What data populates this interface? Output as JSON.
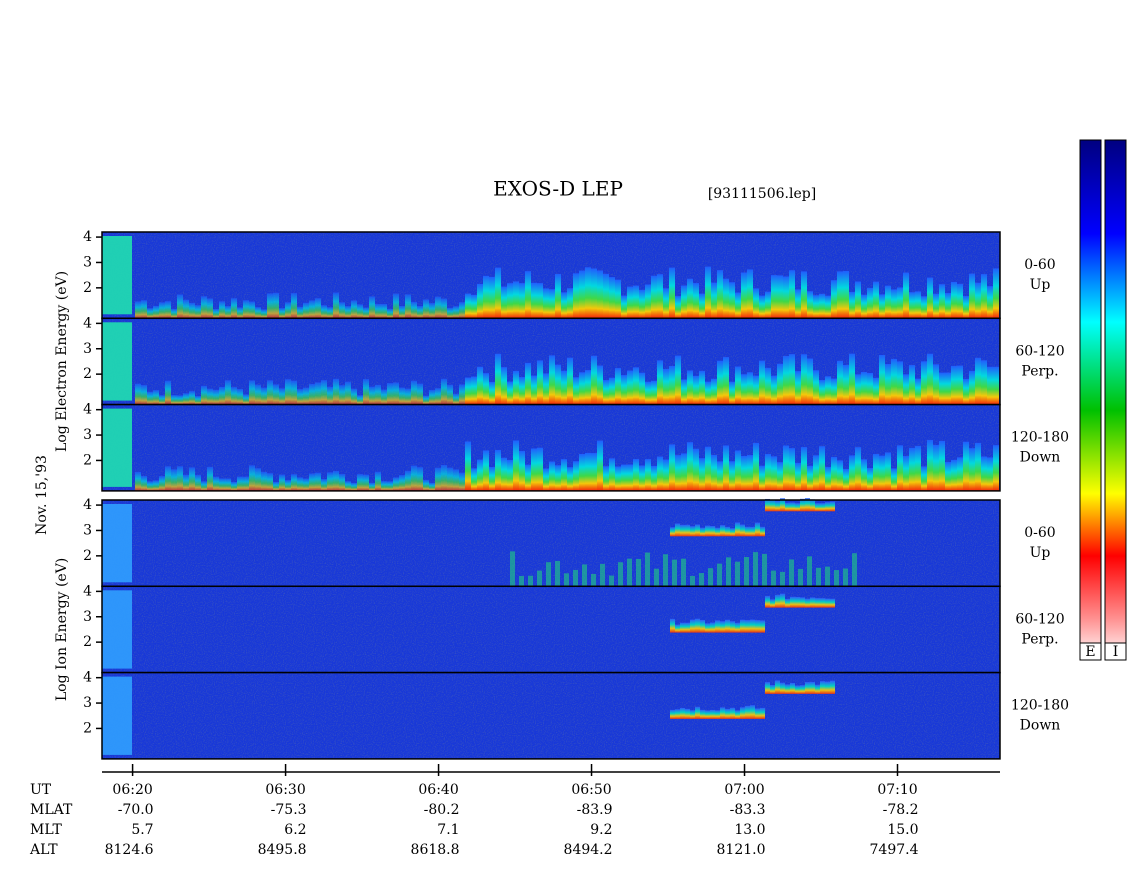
{
  "chart_data": {
    "type": "spectrogram",
    "title": "EXOS-D LEP",
    "subtitle": "[93111506.lep]",
    "date_label": "Nov. 15,'93",
    "ylim": [
      0.8,
      4.2
    ],
    "yticks": [
      2,
      3,
      4
    ],
    "xlim": [
      378,
      436.7
    ],
    "xticks": [
      {
        "value": 380,
        "label": "06:20"
      },
      {
        "value": 390,
        "label": "06:30"
      },
      {
        "value": 400,
        "label": "06:40"
      },
      {
        "value": 410,
        "label": "06:50"
      },
      {
        "value": 420,
        "label": "07:00"
      },
      {
        "value": 430,
        "label": "07:10"
      }
    ],
    "groups": [
      {
        "name": "electron",
        "axis_label": "Log Electron Energy (eV)",
        "colorbar_label": "E",
        "panels": [
          [
            "0-60",
            "Up"
          ],
          [
            "60-120",
            "Perp."
          ],
          [
            "120-180",
            "Down"
          ]
        ]
      },
      {
        "name": "ion",
        "axis_label": "Log Ion Energy (eV)",
        "colorbar_label": "I",
        "panels": [
          [
            "0-60",
            "Up"
          ],
          [
            "60-120",
            "Perp."
          ],
          [
            "120-180",
            "Down"
          ]
        ]
      }
    ],
    "ephemeris": [
      {
        "label": "UT",
        "values": []
      },
      {
        "label": "MLAT",
        "values": [
          "-70.0",
          "-75.3",
          "-80.2",
          "-83.9",
          "-83.3",
          "-78.2"
        ]
      },
      {
        "label": "MLT",
        "values": [
          "5.7",
          "6.2",
          "7.1",
          "9.2",
          "13.0",
          "15.0"
        ]
      },
      {
        "label": "ALT",
        "values": [
          "8124.6",
          "8495.8",
          "8618.8",
          "8494.2",
          "8121.0",
          "7497.4"
        ]
      }
    ]
  }
}
